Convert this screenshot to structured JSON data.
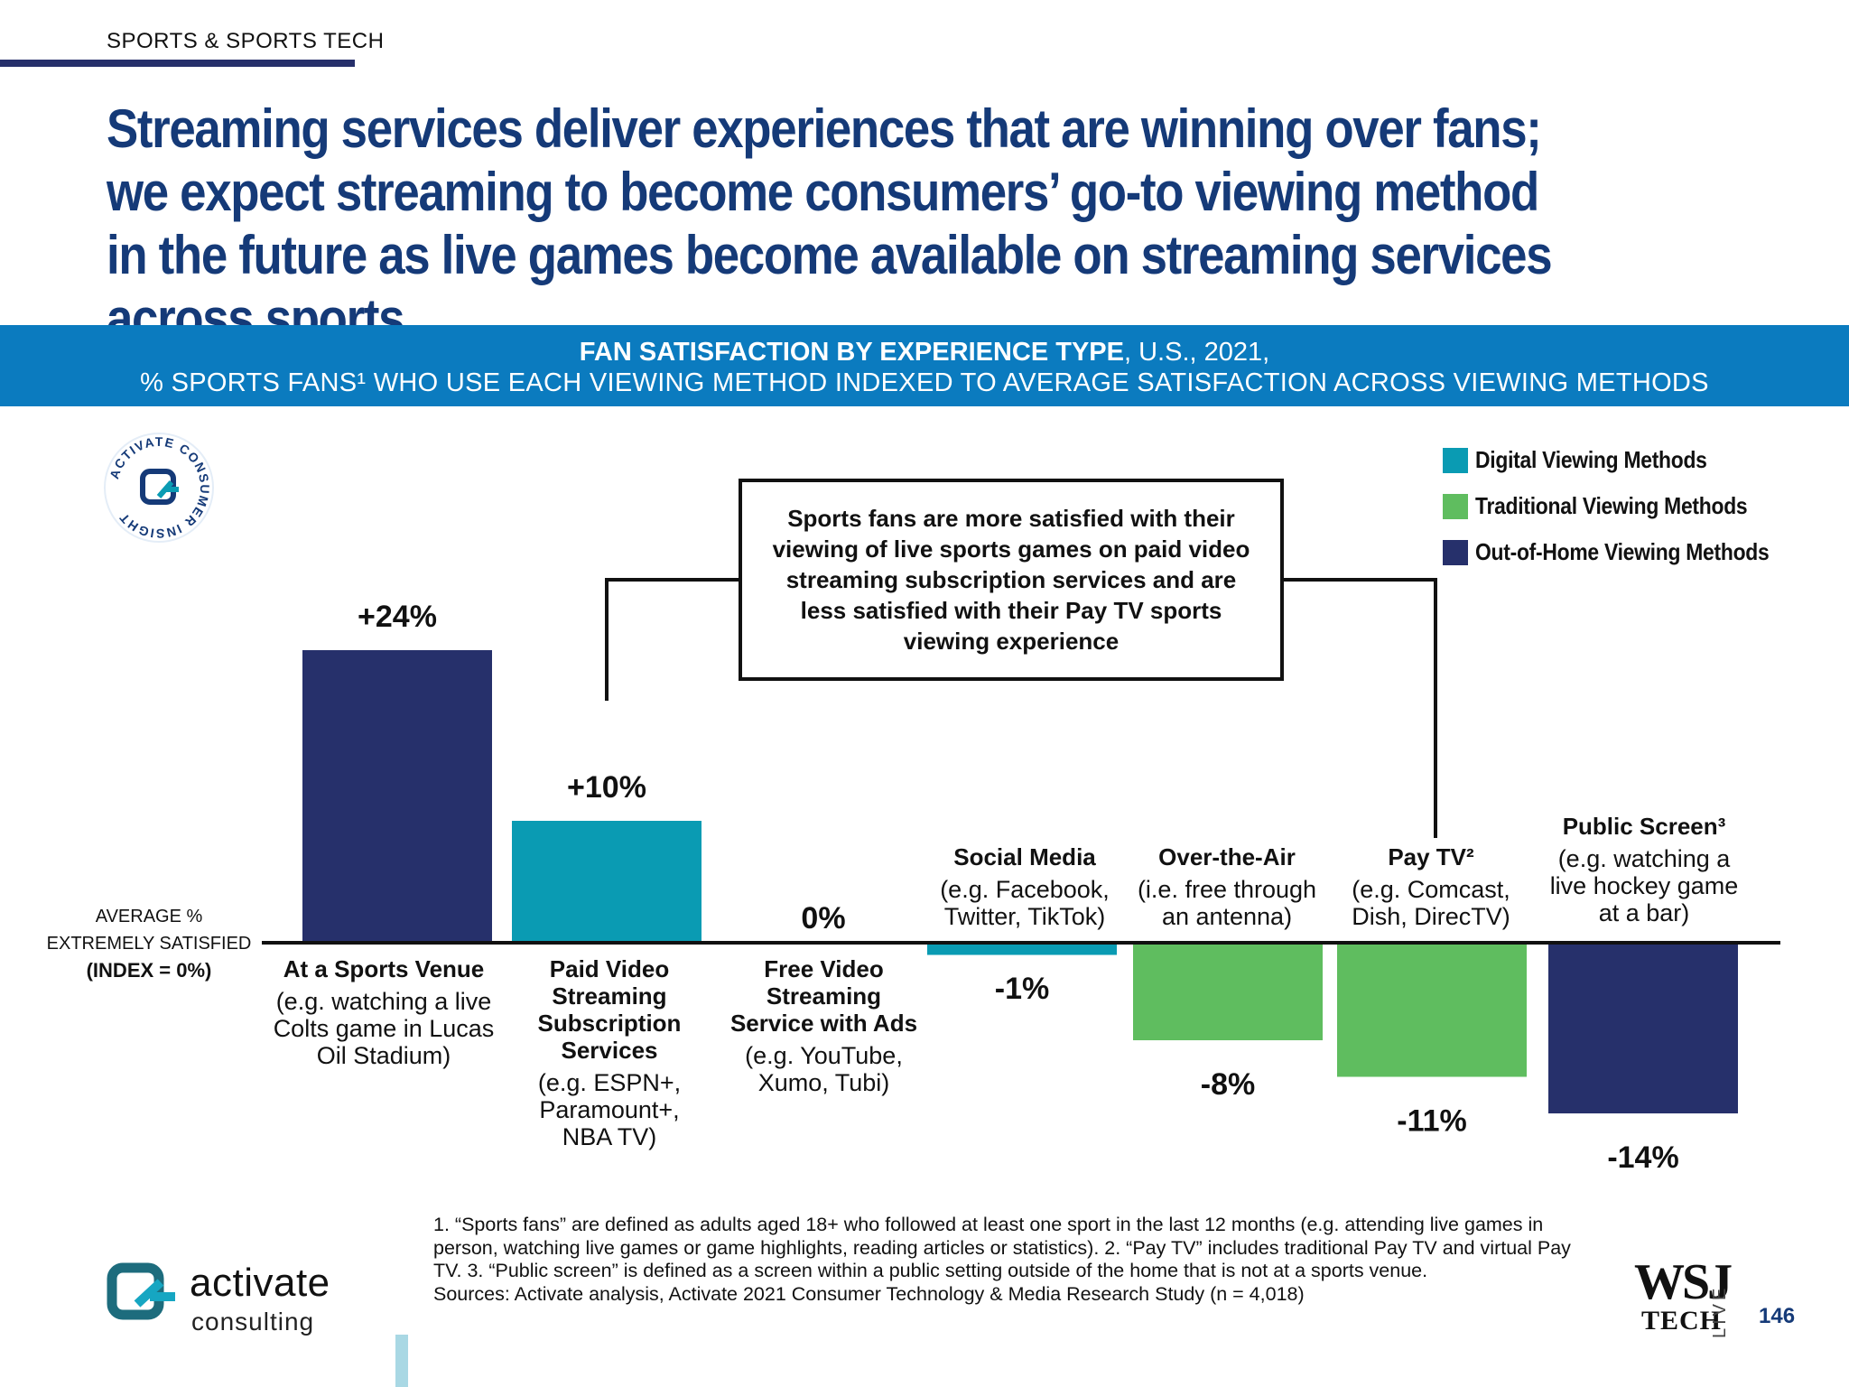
{
  "section_tag": "SPORTS & SPORTS TECH",
  "headline": "Streaming services deliver experiences that are winning over fans; we expect streaming to become consumers’ go-to viewing method in the future as live games become available on streaming services across sports",
  "banner": {
    "title_bold": "FAN SATISFACTION BY EXPERIENCE TYPE",
    "title_rest": ", U.S., 2021,",
    "subtitle": "% SPORTS FANS¹ WHO USE EACH VIEWING METHOD INDEXED TO AVERAGE SATISFACTION ACROSS VIEWING METHODS"
  },
  "seal": {
    "outer_text": "ACTIVATE CONSUMER INSIGHT"
  },
  "legend": [
    {
      "label": "Digital Viewing Methods",
      "color": "#0a9bb3"
    },
    {
      "label": "Traditional Viewing Methods",
      "color": "#5fbd5f"
    },
    {
      "label": "Out-of-Home Viewing Methods",
      "color": "#26306b"
    }
  ],
  "baseline_label": {
    "line1": "AVERAGE %",
    "line2": "EXTREMELY SATISFIED",
    "line3": "(INDEX = 0%)"
  },
  "callout": "Sports fans are more satisfied with their viewing of live sports games on paid video streaming subscription services and are less satisfied with their Pay TV sports viewing experience",
  "chart_data": {
    "type": "bar",
    "title": "FAN SATISFACTION BY EXPERIENCE TYPE, U.S., 2021,",
    "subtitle": "% SPORTS FANS¹ WHO USE EACH VIEWING METHOD INDEXED TO AVERAGE SATISFACTION ACROSS VIEWING METHODS",
    "categories": [
      "At a Sports Venue",
      "Paid Video Streaming Subscription Services",
      "Free Video Streaming Service with Ads",
      "Social Media",
      "Over-the-Air",
      "Pay TV²",
      "Public Screen³"
    ],
    "values": [
      24,
      10,
      0,
      -1,
      -8,
      -11,
      -14
    ],
    "value_labels": [
      "+24%",
      "+10%",
      "0%",
      "-1%",
      "-8%",
      "-11%",
      "-14%"
    ],
    "groups": [
      "Out-of-Home Viewing Methods",
      "Digital Viewing Methods",
      "Digital Viewing Methods",
      "Digital Viewing Methods",
      "Traditional Viewing Methods",
      "Traditional Viewing Methods",
      "Out-of-Home Viewing Methods"
    ],
    "colors": [
      "#26306b",
      "#0a9bb3",
      "#0a9bb3",
      "#0a9bb3",
      "#5fbd5f",
      "#5fbd5f",
      "#26306b"
    ],
    "ylim": [
      -14,
      24
    ],
    "grid": false,
    "legend_position": "top-right"
  },
  "categories": [
    {
      "title": "At a Sports Venue",
      "desc": "(e.g. watching a live Colts game in Lucas Oil Stadium)"
    },
    {
      "title": "Paid Video Streaming Subscription Services",
      "desc": "(e.g. ESPN+, Paramount+, NBA TV)"
    },
    {
      "title": "Free Video Streaming Service with Ads",
      "desc": "(e.g. YouTube, Xumo, Tubi)"
    },
    {
      "title": "Social Media",
      "desc": "(e.g. Facebook, Twitter, TikTok)"
    },
    {
      "title": "Over-the-Air",
      "desc": "(i.e. free through an antenna)"
    },
    {
      "title": "Pay TV²",
      "desc": "(e.g. Comcast, Dish, DirecTV)"
    },
    {
      "title": "Public Screen³",
      "desc": "(e.g. watching a live hockey game at a bar)"
    }
  ],
  "footnote": {
    "text": "1. “Sports fans” are defined as adults aged 18+ who followed at least one sport in the last 12 months (e.g. attending live games in person, watching live games or game highlights, reading articles or statistics).  2. “Pay TV” includes traditional Pay TV and virtual Pay TV.  3. “Public screen” is defined as a screen within a public setting outside of the home that is not at a sports venue.",
    "sources": "Sources: Activate analysis, Activate 2021 Consumer Technology & Media Research Study (n = 4,018)"
  },
  "logo": {
    "name": "activate",
    "sub": "consulting"
  },
  "wsj": {
    "mark": "WSJ",
    "tech": "TECH",
    "live": "LIVE"
  },
  "page_number": "146"
}
